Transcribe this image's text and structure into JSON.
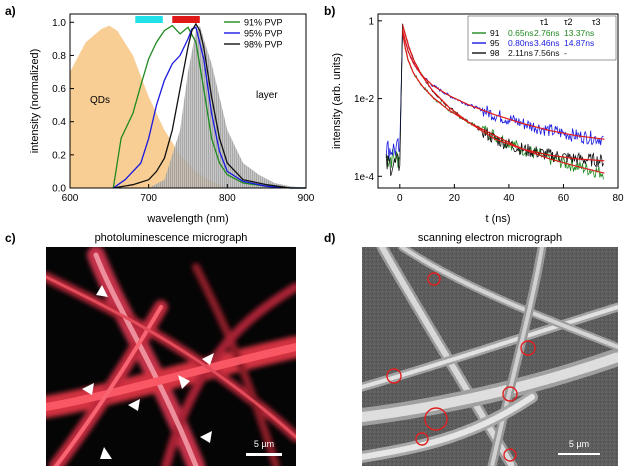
{
  "figure": {
    "panel_a": {
      "label": "a)",
      "legend": [
        {
          "name": "91% PVP",
          "color": "#1f8a1f"
        },
        {
          "name": "95% PVP",
          "color": "#1a1ae0"
        },
        {
          "name": "98% PVP",
          "color": "#111111"
        }
      ],
      "ann_qds": "QDs",
      "ann_layer": "layer",
      "bar_colors": [
        "#22e0e8",
        "#e01818"
      ]
    },
    "panel_b": {
      "label": "b)",
      "table_header": {
        "tau1": "τ1",
        "tau2": "τ2",
        "tau3": "τ3"
      },
      "table_rows": [
        {
          "sample": "91",
          "t1": "0.65ns",
          "t2": "2.76ns",
          "t3": "13.37ns",
          "color": "#1f8a1f"
        },
        {
          "sample": "95",
          "t1": "0.80ns",
          "t2": "3.46ns",
          "t3": "14.87ns",
          "color": "#1a1ae0"
        },
        {
          "sample": "98",
          "t1": "2.11ns",
          "t2": "7.56ns",
          "t3": "-",
          "color": "#111111"
        }
      ]
    },
    "panel_c": {
      "label": "c)",
      "title": "photoluminescence micrograph",
      "scale_bar": "5 µm"
    },
    "panel_d": {
      "label": "d)",
      "title": "scanning electron micrograph",
      "scale_bar": "5 µm"
    }
  },
  "chart_data": [
    {
      "type": "line",
      "xlabel": "wavelength (nm)",
      "ylabel": "intensity (normalized)",
      "xlim": [
        600,
        900
      ],
      "ylim": [
        0,
        1.05
      ],
      "xticks": [
        "600",
        "700",
        "800",
        "900"
      ],
      "yticks": [
        "0.0",
        "0.2",
        "0.4",
        "0.6",
        "0.8",
        "1.0"
      ],
      "series": [
        {
          "name": "91% PVP",
          "x": [
            655,
            665,
            680,
            690,
            700,
            710,
            720,
            730,
            740,
            750,
            760,
            770,
            780,
            790,
            800,
            820,
            850,
            880,
            900
          ],
          "y": [
            0.0,
            0.3,
            0.45,
            0.62,
            0.78,
            0.88,
            0.95,
            0.98,
            0.93,
            0.97,
            0.88,
            0.6,
            0.3,
            0.15,
            0.08,
            0.03,
            0.01,
            0.0,
            0.0
          ]
        },
        {
          "name": "95% PVP",
          "x": [
            655,
            670,
            690,
            700,
            710,
            720,
            730,
            740,
            750,
            755,
            760,
            770,
            780,
            790,
            800,
            820,
            850,
            880,
            900
          ],
          "y": [
            0.0,
            0.05,
            0.15,
            0.3,
            0.5,
            0.65,
            0.75,
            0.8,
            0.9,
            0.96,
            0.97,
            0.78,
            0.45,
            0.22,
            0.1,
            0.04,
            0.01,
            0.0,
            0.0
          ]
        },
        {
          "name": "98% PVP",
          "x": [
            655,
            680,
            700,
            710,
            720,
            730,
            740,
            750,
            755,
            760,
            765,
            770,
            780,
            790,
            800,
            820,
            850,
            880,
            900
          ],
          "y": [
            0.0,
            0.02,
            0.05,
            0.1,
            0.18,
            0.35,
            0.6,
            0.85,
            0.95,
            0.99,
            0.95,
            0.85,
            0.55,
            0.3,
            0.15,
            0.05,
            0.02,
            0.0,
            0.0
          ]
        },
        {
          "name": "QDs",
          "x": [
            600,
            620,
            640,
            650,
            660,
            680,
            700,
            720,
            740,
            760,
            780,
            800
          ],
          "y": [
            0.7,
            0.88,
            0.96,
            0.98,
            0.95,
            0.8,
            0.55,
            0.35,
            0.2,
            0.1,
            0.04,
            0.0
          ]
        },
        {
          "name": "layer",
          "x": [
            700,
            720,
            740,
            750,
            760,
            765,
            770,
            780,
            790,
            800,
            820,
            840,
            860,
            880,
            900
          ],
          "y": [
            0.0,
            0.05,
            0.35,
            0.7,
            0.95,
            0.98,
            0.9,
            0.75,
            0.55,
            0.35,
            0.15,
            0.08,
            0.03,
            0.01,
            0.0
          ]
        }
      ]
    },
    {
      "type": "line",
      "xlabel": "t (ns)",
      "ylabel": "intensity (arb. units)",
      "xlim": [
        -8,
        80
      ],
      "ylim": [
        5e-05,
        1.5
      ],
      "yscale": "log",
      "xticks": [
        "0",
        "20",
        "40",
        "60",
        "80"
      ],
      "yticks": [
        "1e-4",
        "1e-2",
        "1"
      ],
      "series": [
        {
          "name": "91",
          "x": [
            -5,
            0,
            1,
            2,
            3,
            5,
            8,
            12,
            18,
            25,
            35,
            45,
            55,
            65,
            75
          ],
          "y": [
            0.0003,
            0.0003,
            0.5,
            0.2,
            0.1,
            0.045,
            0.022,
            0.011,
            0.005,
            0.0025,
            0.0011,
            0.0005,
            0.00028,
            0.00018,
            0.00012
          ]
        },
        {
          "name": "95",
          "x": [
            -5,
            0,
            1,
            2,
            3,
            5,
            8,
            12,
            18,
            25,
            35,
            45,
            55,
            65,
            75
          ],
          "y": [
            0.0005,
            0.0005,
            0.6,
            0.3,
            0.17,
            0.08,
            0.04,
            0.022,
            0.012,
            0.007,
            0.0038,
            0.0023,
            0.0015,
            0.0011,
            0.0009
          ]
        },
        {
          "name": "98",
          "x": [
            -5,
            0,
            1,
            2,
            3,
            5,
            8,
            12,
            18,
            25,
            35,
            45,
            55,
            65,
            75
          ],
          "y": [
            0.0002,
            0.0002,
            0.8,
            0.45,
            0.25,
            0.1,
            0.04,
            0.016,
            0.006,
            0.0025,
            0.0009,
            0.0005,
            0.00035,
            0.00028,
            0.00025
          ]
        }
      ]
    }
  ]
}
